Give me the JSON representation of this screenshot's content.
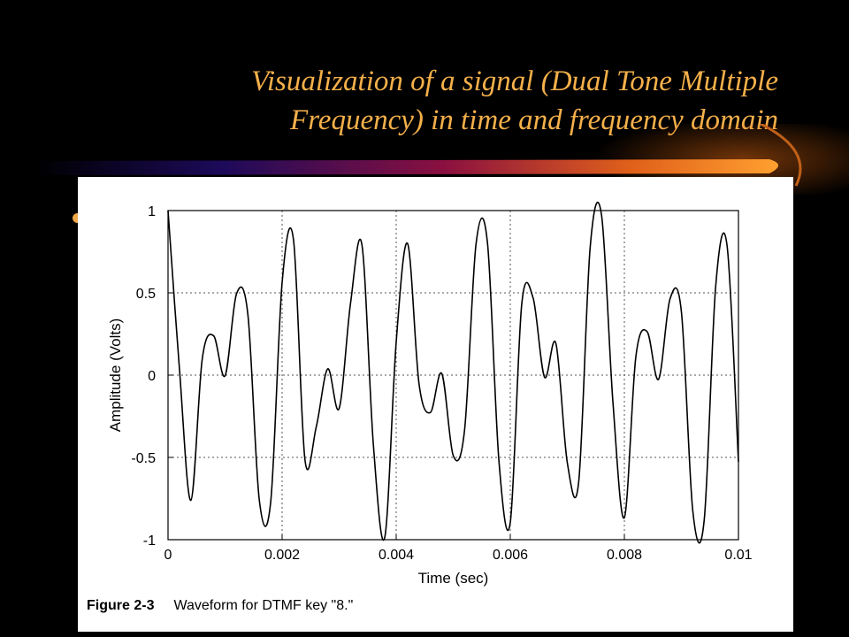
{
  "slide": {
    "title": "Visualization of a signal (Dual Tone Multiple Frequency) in time and frequency domain"
  },
  "figure": {
    "caption_label": "Figure 2-3",
    "caption_text": "Waveform for DTMF key \"8.\""
  },
  "chart_data": {
    "type": "line",
    "title": "",
    "xlabel": "Time (sec)",
    "ylabel": "Amplitude (Volts)",
    "xlim": [
      0,
      0.01
    ],
    "ylim": [
      -1,
      1
    ],
    "xticks": [
      0,
      0.002,
      0.004,
      0.006,
      0.008,
      0.01
    ],
    "xtick_labels": [
      "0",
      "0.002",
      "0.004",
      "0.006",
      "0.008",
      "0.01"
    ],
    "yticks": [
      -1,
      -0.5,
      0,
      0.5,
      1
    ],
    "ytick_labels": [
      "-1",
      "-0.5",
      "0",
      "0.5",
      "1"
    ],
    "grid": true,
    "series": [
      {
        "x": [
          0,
          0.0002,
          0.0004,
          0.0006,
          0.0008,
          0.001,
          0.0012,
          0.0014,
          0.0016,
          0.0018,
          0.002,
          0.0022,
          0.0024,
          0.0026,
          0.0028,
          0.003,
          0.0032,
          0.0034,
          0.0036,
          0.0038,
          0.004,
          0.0042,
          0.0044,
          0.0046,
          0.0048,
          0.005,
          0.0052,
          0.0054,
          0.0056,
          0.0058,
          0.006,
          0.0062,
          0.0064,
          0.0066,
          0.0068,
          0.007,
          0.0072,
          0.0074,
          0.0076,
          0.0078,
          0.008,
          0.0082,
          0.0084,
          0.0086,
          0.0088,
          0.009,
          0.0092,
          0.0094,
          0.0096,
          0.0098,
          0.01
        ],
        "y": [
          1.0,
          0.038,
          -0.761,
          0.099,
          0.239,
          -0.004,
          0.493,
          0.367,
          -0.759,
          -0.77,
          0.562,
          0.821,
          -0.513,
          -0.312,
          0.038,
          -0.202,
          0.438,
          0.79,
          -0.424,
          -0.985,
          0.201,
          0.799,
          -0.052,
          -0.227,
          0.009,
          -0.489,
          -0.329,
          0.798,
          0.804,
          -0.517,
          -0.895,
          0.428,
          0.469,
          -0.012,
          0.192,
          -0.533,
          -0.646,
          0.774,
          0.972,
          -0.167,
          -0.866,
          0.108,
          0.264,
          -0.025,
          0.463,
          0.384,
          -0.827,
          -0.879,
          0.535,
          0.788,
          -0.527
        ]
      }
    ]
  }
}
